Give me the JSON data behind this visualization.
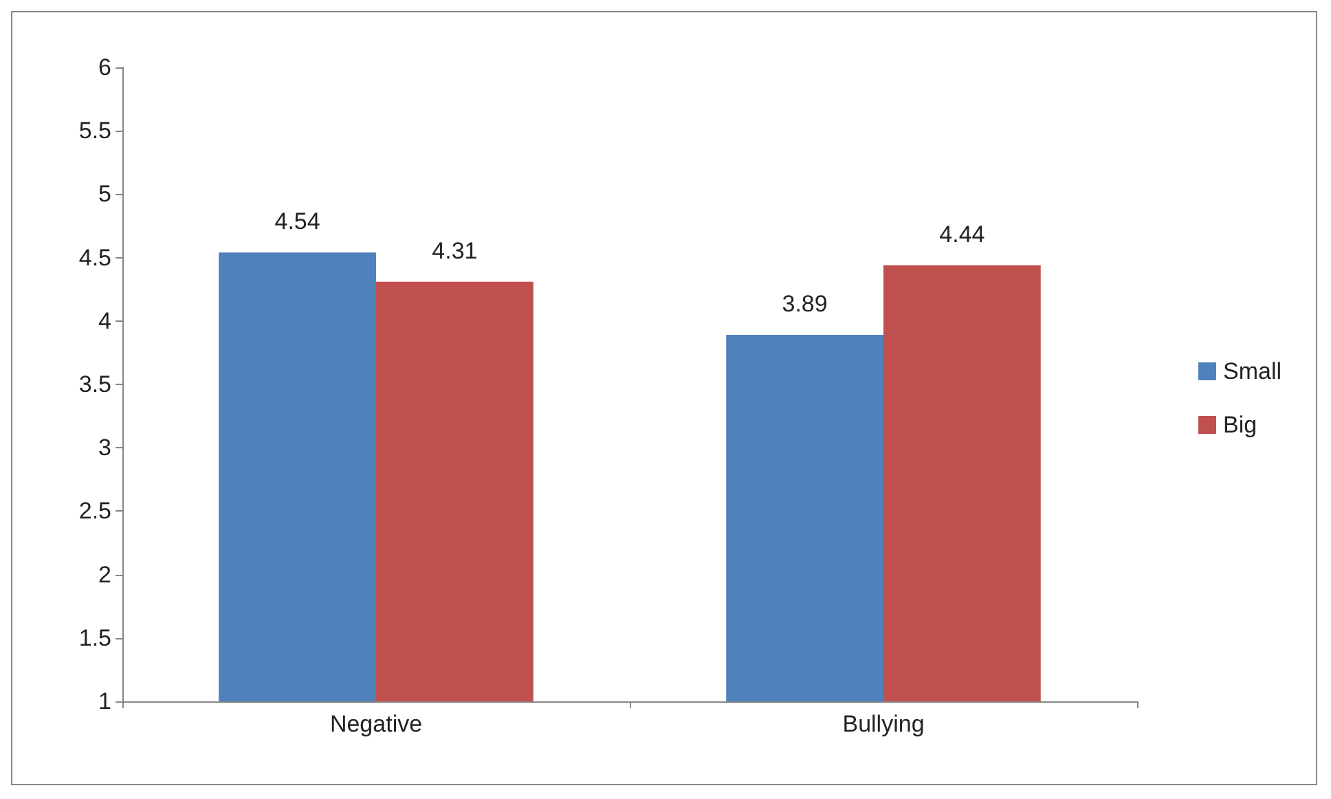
{
  "chart_data": {
    "type": "bar",
    "categories": [
      "Negative",
      "Bullying"
    ],
    "series": [
      {
        "name": "Small",
        "color": "#4f81bd",
        "values": [
          4.54,
          3.89
        ]
      },
      {
        "name": "Big",
        "color": "#c0504d",
        "values": [
          4.31,
          4.44
        ]
      }
    ],
    "ylim": [
      1,
      6
    ],
    "yticks": [
      1,
      1.5,
      2,
      2.5,
      3,
      3.5,
      4,
      4.5,
      5,
      5.5,
      6
    ],
    "grid": false,
    "legend": "right",
    "data_labels": true
  }
}
